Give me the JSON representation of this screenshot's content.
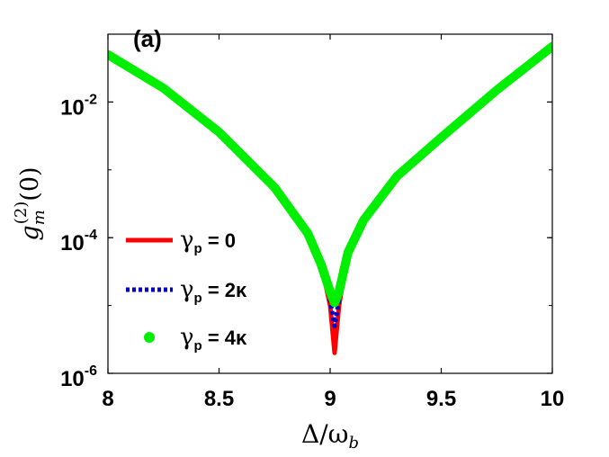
{
  "chart_data": {
    "type": "line",
    "panel_label": "(a)",
    "xlabel": "Δ/ω_b",
    "ylabel": "g_m^(2)(0)",
    "xlim": [
      8,
      10
    ],
    "ylim": [
      1e-06,
      0.1
    ],
    "yscale": "log",
    "grid": false,
    "legend_position": "left",
    "x_ticks": [
      "8",
      "8.5",
      "9",
      "9.5",
      "10"
    ],
    "y_ticks": [
      {
        "base": "10",
        "exp": "-2"
      },
      {
        "base": "10",
        "exp": "-4"
      },
      {
        "base": "10",
        "exp": "-6"
      }
    ],
    "series": [
      {
        "name": "γp = 0",
        "legend": {
          "symbol": "γ",
          "subscript": "p",
          "rest": " = 0"
        },
        "color": "#ff0000",
        "style": "solid",
        "x": [
          8.0,
          8.25,
          8.5,
          8.75,
          8.9,
          8.96,
          9.0,
          9.02,
          9.04,
          9.08,
          9.15,
          9.3,
          9.5,
          9.75,
          10.0
        ],
        "y": [
          0.05,
          0.016,
          0.0036,
          0.00055,
          0.000115,
          4e-05,
          1e-05,
          2e-06,
          1e-05,
          6e-05,
          0.00018,
          0.0008,
          0.003,
          0.015,
          0.066
        ]
      },
      {
        "name": "γp = 2κ",
        "legend": {
          "symbol": "γ",
          "subscript": "p",
          "rest": " = 2κ"
        },
        "color": "#0000cc",
        "style": "dotted",
        "x": [
          8.0,
          8.25,
          8.5,
          8.75,
          8.9,
          8.96,
          9.0,
          9.02,
          9.04,
          9.08,
          9.15,
          9.3,
          9.5,
          9.75,
          10.0
        ],
        "y": [
          0.05,
          0.016,
          0.0036,
          0.00055,
          0.000115,
          4e-05,
          1.2e-05,
          5e-06,
          1.2e-05,
          6e-05,
          0.00018,
          0.0008,
          0.003,
          0.015,
          0.066
        ]
      },
      {
        "name": "γp = 4κ",
        "legend": {
          "symbol": "γ",
          "subscript": "p",
          "rest": " = 4κ"
        },
        "color": "#00ee00",
        "style": "markers",
        "x": [
          8.0,
          8.25,
          8.5,
          8.75,
          8.9,
          8.96,
          9.0,
          9.02,
          9.04,
          9.08,
          9.15,
          9.3,
          9.5,
          9.75,
          10.0
        ],
        "y": [
          0.05,
          0.016,
          0.0036,
          0.00055,
          0.000115,
          4e-05,
          1.6e-05,
          1.1e-05,
          1.6e-05,
          6e-05,
          0.00018,
          0.0008,
          0.003,
          0.015,
          0.066
        ]
      }
    ]
  }
}
